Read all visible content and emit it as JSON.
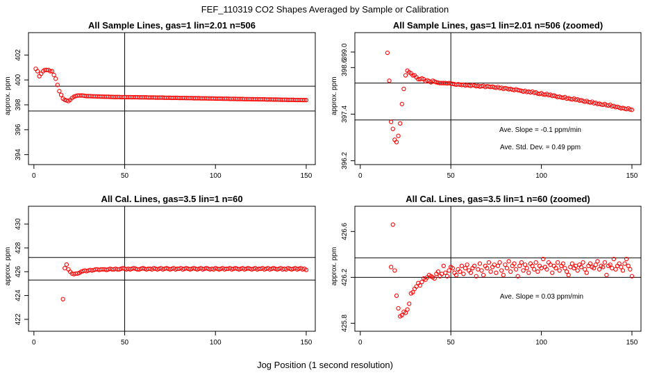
{
  "main_title": "FEF_110319  CO2 Shapes Averaged by Sample or Calibration",
  "x_axis_label": "Jog Position (1 second resolution)",
  "colors": {
    "points": "#ff0000",
    "lines": "#000000",
    "background": "#ffffff"
  },
  "chart_data": [
    {
      "type": "scatter",
      "title": "All Sample Lines, gas=1 lin=2.01 n=506",
      "xlabel": "",
      "ylabel": "approx. ppm",
      "xlim": [
        -3,
        155
      ],
      "ylim": [
        393.2,
        403.8
      ],
      "xticks": [
        0,
        50,
        100,
        150
      ],
      "yticks": [
        394,
        396,
        398,
        400,
        402
      ],
      "vline": 50,
      "hlines": [
        397.5,
        399.5
      ],
      "annotations": [],
      "x": [
        1,
        2,
        3,
        4,
        5,
        6,
        7,
        8,
        9,
        10,
        11,
        12,
        13,
        14,
        15,
        16,
        17,
        18,
        19,
        20,
        21,
        22,
        23,
        24,
        25,
        26,
        27,
        28,
        29,
        30,
        31,
        32,
        33,
        34,
        35,
        36,
        37,
        38,
        39,
        40,
        41,
        42,
        43,
        44,
        45,
        46,
        47,
        48,
        49,
        50,
        51,
        52,
        53,
        54,
        55,
        56,
        57,
        58,
        59,
        60,
        61,
        62,
        63,
        64,
        65,
        66,
        67,
        68,
        69,
        70,
        71,
        72,
        73,
        74,
        75,
        76,
        77,
        78,
        79,
        80,
        81,
        82,
        83,
        84,
        85,
        86,
        87,
        88,
        89,
        90,
        91,
        92,
        93,
        94,
        95,
        96,
        97,
        98,
        99,
        100,
        101,
        102,
        103,
        104,
        105,
        106,
        107,
        108,
        109,
        110,
        111,
        112,
        113,
        114,
        115,
        116,
        117,
        118,
        119,
        120,
        121,
        122,
        123,
        124,
        125,
        126,
        127,
        128,
        129,
        130,
        131,
        132,
        133,
        134,
        135,
        136,
        137,
        138,
        139,
        140,
        141,
        142,
        143,
        144,
        145,
        146,
        147,
        148,
        149,
        150
      ],
      "y": [
        400.9,
        400.7,
        400.3,
        400.5,
        400.7,
        400.8,
        400.8,
        400.8,
        400.7,
        400.7,
        400.4,
        400.1,
        399.6,
        399.1,
        398.8,
        398.5,
        398.4,
        398.35,
        398.3,
        398.4,
        398.55,
        398.65,
        398.7,
        398.75,
        398.75,
        398.75,
        398.75,
        398.72,
        398.7,
        398.7,
        398.7,
        398.69,
        398.68,
        398.68,
        398.67,
        398.67,
        398.66,
        398.66,
        398.65,
        398.65,
        398.65,
        398.64,
        398.64,
        398.63,
        398.63,
        398.63,
        398.63,
        398.62,
        398.62,
        398.62,
        398.62,
        398.62,
        398.62,
        398.61,
        398.61,
        398.61,
        398.61,
        398.6,
        398.6,
        398.6,
        398.6,
        398.6,
        398.59,
        398.59,
        398.59,
        398.59,
        398.58,
        398.58,
        398.58,
        398.58,
        398.58,
        398.57,
        398.57,
        398.57,
        398.57,
        398.56,
        398.56,
        398.56,
        398.56,
        398.55,
        398.55,
        398.55,
        398.55,
        398.54,
        398.54,
        398.54,
        398.54,
        398.53,
        398.53,
        398.53,
        398.53,
        398.52,
        398.52,
        398.52,
        398.52,
        398.51,
        398.51,
        398.51,
        398.51,
        398.5,
        398.5,
        398.5,
        398.5,
        398.49,
        398.49,
        398.49,
        398.49,
        398.48,
        398.48,
        398.48,
        398.48,
        398.47,
        398.47,
        398.47,
        398.47,
        398.46,
        398.46,
        398.46,
        398.46,
        398.45,
        398.45,
        398.45,
        398.45,
        398.44,
        398.44,
        398.44,
        398.44,
        398.43,
        398.43,
        398.43,
        398.43,
        398.42,
        398.42,
        398.42,
        398.42,
        398.41,
        398.41,
        398.41,
        398.41,
        398.4,
        398.4,
        398.4,
        398.4,
        398.39,
        398.39,
        398.39,
        398.39,
        398.38,
        398.38,
        398.38
      ]
    },
    {
      "type": "scatter",
      "title": "All Sample Lines, gas=1 lin=2.01 n=506 (zoomed)",
      "xlabel": "",
      "ylabel": "approx. ppm",
      "xlim": [
        -3,
        155
      ],
      "ylim": [
        396.1,
        399.5
      ],
      "xticks": [
        0,
        50,
        100,
        150
      ],
      "yticks": [
        396.2,
        397.4,
        398.6,
        399.0
      ],
      "ytick_labels": [
        "396.2",
        "397.4",
        "398.6",
        "399.0"
      ],
      "vline": 50,
      "hlines": [
        398.2,
        397.25
      ],
      "annotations": [
        "Ave. Slope =  -0.1  ppm/min",
        "Ave. Std. Dev. =  0.49  ppm"
      ],
      "x": [
        15,
        16,
        17,
        18,
        19,
        20,
        21,
        22,
        23,
        24,
        25,
        26,
        27,
        28,
        29,
        30,
        31,
        32,
        33,
        34,
        35,
        36,
        37,
        38,
        39,
        40,
        41,
        42,
        43,
        44,
        45,
        46,
        47,
        48,
        49,
        50,
        51,
        52,
        53,
        54,
        55,
        56,
        57,
        58,
        59,
        60,
        61,
        62,
        63,
        64,
        65,
        66,
        67,
        68,
        69,
        70,
        71,
        72,
        73,
        74,
        75,
        76,
        77,
        78,
        79,
        80,
        81,
        82,
        83,
        84,
        85,
        86,
        87,
        88,
        89,
        90,
        91,
        92,
        93,
        94,
        95,
        96,
        97,
        98,
        99,
        100,
        101,
        102,
        103,
        104,
        105,
        106,
        107,
        108,
        109,
        110,
        111,
        112,
        113,
        114,
        115,
        116,
        117,
        118,
        119,
        120,
        121,
        122,
        123,
        124,
        125,
        126,
        127,
        128,
        129,
        130,
        131,
        132,
        133,
        134,
        135,
        136,
        137,
        138,
        139,
        140,
        141,
        142,
        143,
        144,
        145,
        146,
        147,
        148,
        149,
        150
      ],
      "y": [
        398.98,
        398.26,
        397.2,
        397.02,
        396.74,
        396.68,
        396.84,
        397.16,
        397.66,
        398.05,
        398.4,
        398.52,
        398.48,
        398.45,
        398.4,
        398.4,
        398.35,
        398.3,
        398.3,
        398.32,
        398.3,
        398.25,
        398.27,
        398.25,
        398.22,
        398.26,
        398.24,
        398.22,
        398.21,
        398.2,
        398.2,
        398.2,
        398.2,
        398.19,
        398.2,
        398.19,
        398.18,
        398.17,
        398.16,
        398.17,
        398.16,
        398.15,
        398.16,
        398.14,
        398.15,
        398.14,
        398.13,
        398.15,
        398.14,
        398.12,
        398.13,
        398.11,
        398.12,
        398.13,
        398.1,
        398.12,
        398.11,
        398.1,
        398.11,
        398.09,
        398.08,
        398.1,
        398.07,
        398.08,
        398.05,
        398.07,
        398.06,
        398.04,
        398.05,
        398.03,
        398.02,
        398.04,
        398.02,
        398.01,
        398.0,
        397.98,
        398.0,
        397.97,
        397.98,
        397.96,
        397.98,
        397.95,
        397.96,
        397.93,
        397.92,
        397.94,
        397.91,
        397.9,
        397.92,
        397.89,
        397.9,
        397.87,
        397.88,
        397.86,
        397.84,
        397.85,
        397.83,
        397.82,
        397.84,
        397.8,
        397.81,
        397.79,
        397.78,
        397.8,
        397.77,
        397.78,
        397.75,
        397.76,
        397.74,
        397.72,
        397.74,
        397.71,
        397.7,
        397.72,
        397.68,
        397.69,
        397.66,
        397.67,
        397.65,
        397.64,
        397.66,
        397.63,
        397.62,
        397.64,
        397.6,
        397.61,
        397.58,
        397.59,
        397.57,
        397.55,
        397.56,
        397.54,
        397.53,
        397.55,
        397.52,
        397.51
      ]
    },
    {
      "type": "scatter",
      "title": "All Cal. Lines, gas=3.5 lin=1 n=60",
      "xlabel": "",
      "ylabel": "approx. ppm",
      "xlim": [
        -3,
        155
      ],
      "ylim": [
        421.0,
        431.5
      ],
      "xticks": [
        0,
        50,
        100,
        150
      ],
      "yticks": [
        422,
        424,
        426,
        428,
        430
      ],
      "vline": 50,
      "hlines": [
        427.2,
        425.3
      ],
      "annotations": [],
      "x": [
        16,
        17,
        18,
        19,
        20,
        21,
        22,
        23,
        24,
        25,
        26,
        27,
        28,
        29,
        30,
        31,
        32,
        33,
        34,
        35,
        36,
        37,
        38,
        39,
        40,
        41,
        42,
        43,
        44,
        45,
        46,
        47,
        48,
        49,
        50,
        51,
        52,
        53,
        54,
        55,
        56,
        57,
        58,
        59,
        60,
        61,
        62,
        63,
        64,
        65,
        66,
        67,
        68,
        69,
        70,
        71,
        72,
        73,
        74,
        75,
        76,
        77,
        78,
        79,
        80,
        81,
        82,
        83,
        84,
        85,
        86,
        87,
        88,
        89,
        90,
        91,
        92,
        93,
        94,
        95,
        96,
        97,
        98,
        99,
        100,
        101,
        102,
        103,
        104,
        105,
        106,
        107,
        108,
        109,
        110,
        111,
        112,
        113,
        114,
        115,
        116,
        117,
        118,
        119,
        120,
        121,
        122,
        123,
        124,
        125,
        126,
        127,
        128,
        129,
        130,
        131,
        132,
        133,
        134,
        135,
        136,
        137,
        138,
        139,
        140,
        141,
        142,
        143,
        144,
        145,
        146,
        147,
        148,
        149,
        150
      ],
      "y": [
        423.7,
        426.3,
        426.6,
        426.2,
        426.0,
        425.85,
        425.8,
        425.85,
        425.85,
        425.9,
        426.0,
        426.05,
        426.1,
        426.05,
        426.1,
        426.15,
        426.1,
        426.15,
        426.2,
        426.2,
        426.15,
        426.2,
        426.2,
        426.2,
        426.15,
        426.2,
        426.25,
        426.2,
        426.2,
        426.25,
        426.2,
        426.2,
        426.25,
        426.3,
        426.25,
        426.2,
        426.25,
        426.2,
        426.25,
        426.3,
        426.25,
        426.2,
        426.2,
        426.25,
        426.3,
        426.25,
        426.2,
        426.25,
        426.25,
        426.2,
        426.3,
        426.25,
        426.2,
        426.25,
        426.3,
        426.2,
        426.25,
        426.3,
        426.25,
        426.2,
        426.25,
        426.3,
        426.2,
        426.25,
        426.25,
        426.3,
        426.2,
        426.25,
        426.3,
        426.25,
        426.2,
        426.25,
        426.3,
        426.25,
        426.2,
        426.25,
        426.3,
        426.2,
        426.25,
        426.3,
        426.25,
        426.2,
        426.25,
        426.2,
        426.3,
        426.25,
        426.2,
        426.25,
        426.3,
        426.2,
        426.25,
        426.25,
        426.3,
        426.2,
        426.25,
        426.3,
        426.25,
        426.2,
        426.25,
        426.3,
        426.2,
        426.25,
        426.3,
        426.25,
        426.2,
        426.25,
        426.3,
        426.2,
        426.25,
        426.25,
        426.3,
        426.2,
        426.25,
        426.3,
        426.2,
        426.25,
        426.3,
        426.25,
        426.2,
        426.25,
        426.3,
        426.2,
        426.25,
        426.2,
        426.3,
        426.25,
        426.2,
        426.25,
        426.3,
        426.2,
        426.25,
        426.3,
        426.2,
        426.25,
        426.15
      ]
    },
    {
      "type": "scatter",
      "title": "All Cal. Lines, gas=3.5 lin=1 n=60 (zoomed)",
      "xlabel": "",
      "ylabel": "approx. ppm",
      "xlim": [
        -3,
        155
      ],
      "ylim": [
        425.73,
        426.82
      ],
      "xticks": [
        0,
        50,
        100,
        150
      ],
      "yticks": [
        425.8,
        426.2,
        426.6
      ],
      "ytick_labels": [
        "425.8",
        "426.2",
        "426.6"
      ],
      "vline": 50,
      "hlines": [
        426.37,
        426.2
      ],
      "annotations": [
        "Ave. Slope =  0.03  ppm/min"
      ],
      "x": [
        17,
        18,
        19,
        20,
        21,
        22,
        23,
        24,
        25,
        26,
        27,
        28,
        29,
        30,
        31,
        32,
        33,
        34,
        35,
        36,
        37,
        38,
        39,
        40,
        41,
        42,
        43,
        44,
        45,
        46,
        47,
        48,
        49,
        50,
        51,
        52,
        53,
        54,
        55,
        56,
        57,
        58,
        59,
        60,
        61,
        62,
        63,
        64,
        65,
        66,
        67,
        68,
        69,
        70,
        71,
        72,
        73,
        74,
        75,
        76,
        77,
        78,
        79,
        80,
        81,
        82,
        83,
        84,
        85,
        86,
        87,
        88,
        89,
        90,
        91,
        92,
        93,
        94,
        95,
        96,
        97,
        98,
        99,
        100,
        101,
        102,
        103,
        104,
        105,
        106,
        107,
        108,
        109,
        110,
        111,
        112,
        113,
        114,
        115,
        116,
        117,
        118,
        119,
        120,
        121,
        122,
        123,
        124,
        125,
        126,
        127,
        128,
        129,
        130,
        131,
        132,
        133,
        134,
        135,
        136,
        137,
        138,
        139,
        140,
        141,
        142,
        143,
        144,
        145,
        146,
        147,
        148,
        149,
        150
      ],
      "y": [
        426.29,
        426.66,
        426.26,
        426.04,
        425.93,
        425.86,
        425.87,
        425.9,
        425.89,
        425.92,
        425.97,
        426.06,
        426.07,
        426.1,
        426.12,
        426.15,
        426.13,
        426.16,
        426.19,
        426.18,
        426.2,
        426.22,
        426.21,
        426.2,
        426.19,
        426.23,
        426.25,
        426.21,
        426.23,
        426.3,
        426.24,
        426.21,
        426.26,
        426.29,
        426.28,
        426.24,
        426.22,
        426.27,
        426.25,
        426.3,
        426.23,
        426.28,
        426.31,
        426.26,
        426.24,
        426.28,
        426.3,
        426.21,
        426.27,
        426.32,
        426.26,
        426.22,
        426.3,
        426.28,
        426.33,
        426.25,
        426.29,
        426.31,
        426.24,
        426.3,
        426.33,
        426.26,
        426.22,
        426.31,
        426.28,
        426.34,
        426.25,
        426.3,
        426.32,
        426.27,
        426.21,
        426.3,
        426.33,
        426.26,
        426.31,
        426.28,
        426.24,
        426.32,
        426.3,
        426.27,
        426.33,
        426.25,
        426.3,
        426.28,
        426.36,
        426.29,
        426.27,
        426.33,
        426.31,
        426.24,
        426.3,
        426.28,
        426.33,
        426.26,
        426.3,
        426.32,
        426.28,
        426.25,
        426.22,
        426.29,
        426.32,
        426.28,
        426.3,
        426.26,
        426.31,
        426.29,
        426.33,
        426.27,
        426.24,
        426.3,
        426.32,
        426.29,
        426.28,
        426.31,
        426.34,
        426.27,
        426.3,
        426.29,
        426.33,
        426.22,
        426.3,
        426.31,
        426.28,
        426.36,
        426.27,
        426.3,
        426.32,
        426.29,
        426.26,
        426.32,
        426.36,
        426.3,
        426.27,
        426.21
      ]
    }
  ]
}
